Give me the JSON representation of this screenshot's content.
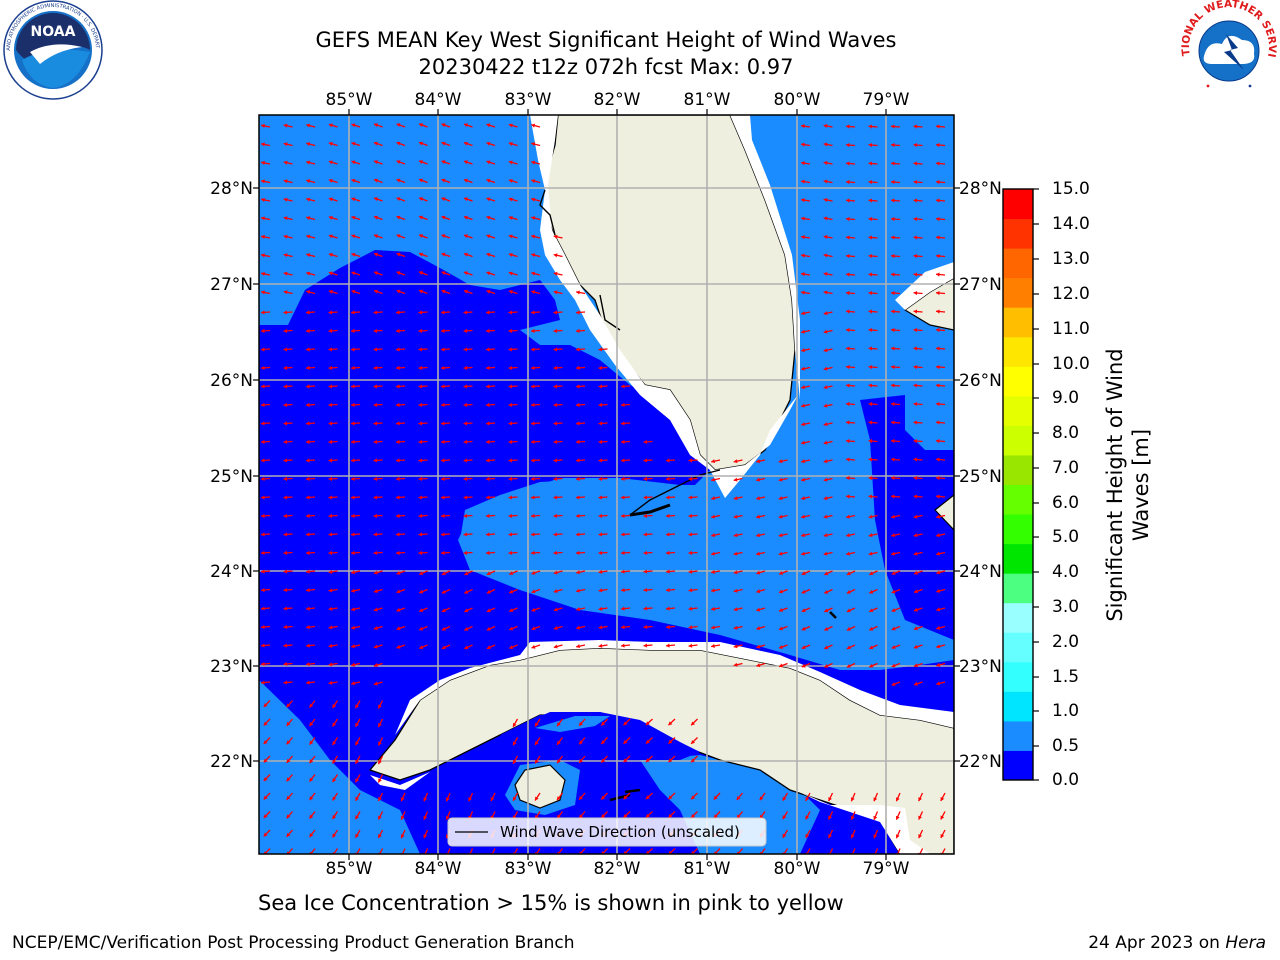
{
  "header": {
    "title_line1": "GEFS MEAN Key West Significant Height of Wind Waves",
    "title_line2": "20230422 t12z 072h fcst   Max: 0.97"
  },
  "logos": {
    "left": {
      "icon": "noaa-logo",
      "text": "NOAA",
      "ring_text": "NATIONAL OCEANIC AND ATMOSPHERIC ADMINISTRATION · U.S. DEPARTMENT OF COMMERCE"
    },
    "right": {
      "icon": "national-weather-service-logo",
      "ring_text": "NATIONAL WEATHER SERVICE"
    }
  },
  "map": {
    "lon_labels": [
      "85°W",
      "84°W",
      "83°W",
      "82°W",
      "81°W",
      "80°W",
      "79°W"
    ],
    "lat_labels": [
      "28°N",
      "27°N",
      "26°N",
      "25°N",
      "24°N",
      "23°N",
      "22°N"
    ],
    "legend_label": "Wind Wave Direction (unscaled)",
    "colors": {
      "band_0_0_5": "#0000ff",
      "band_0_5_1_0": "#1a8cff",
      "land": "#efefdf",
      "arrows": "#ff0000",
      "grid": "#b0b0b0"
    }
  },
  "colorbar": {
    "label": "Significant Height of Wind Waves [m]",
    "label_line1": "Significant Height of Wind",
    "label_line2": "Waves [m]",
    "ticks": [
      "15.0",
      "14.0",
      "13.0",
      "12.0",
      "11.0",
      "10.0",
      "9.0",
      "8.0",
      "7.0",
      "6.0",
      "5.0",
      "4.0",
      "3.0",
      "2.0",
      "1.5",
      "1.0",
      "0.5",
      "0.0"
    ],
    "colors": [
      "#0000ff",
      "#1a8cff",
      "#00e5ff",
      "#33ffff",
      "#66ffff",
      "#99ffff",
      "#4dff80",
      "#00e600",
      "#33ff00",
      "#66ff00",
      "#99e600",
      "#ccff00",
      "#e6ff00",
      "#ffff00",
      "#ffe600",
      "#ffbf00",
      "#ff8000",
      "#ff6600",
      "#ff3300",
      "#ff0000"
    ]
  },
  "footer": {
    "note": "Sea Ice Concentration > 15% is shown in pink to yellow",
    "credit": "NCEP/EMC/Verification Post Processing Product Generation Branch",
    "date": "24 Apr 2023 on",
    "machine": "Hera"
  }
}
